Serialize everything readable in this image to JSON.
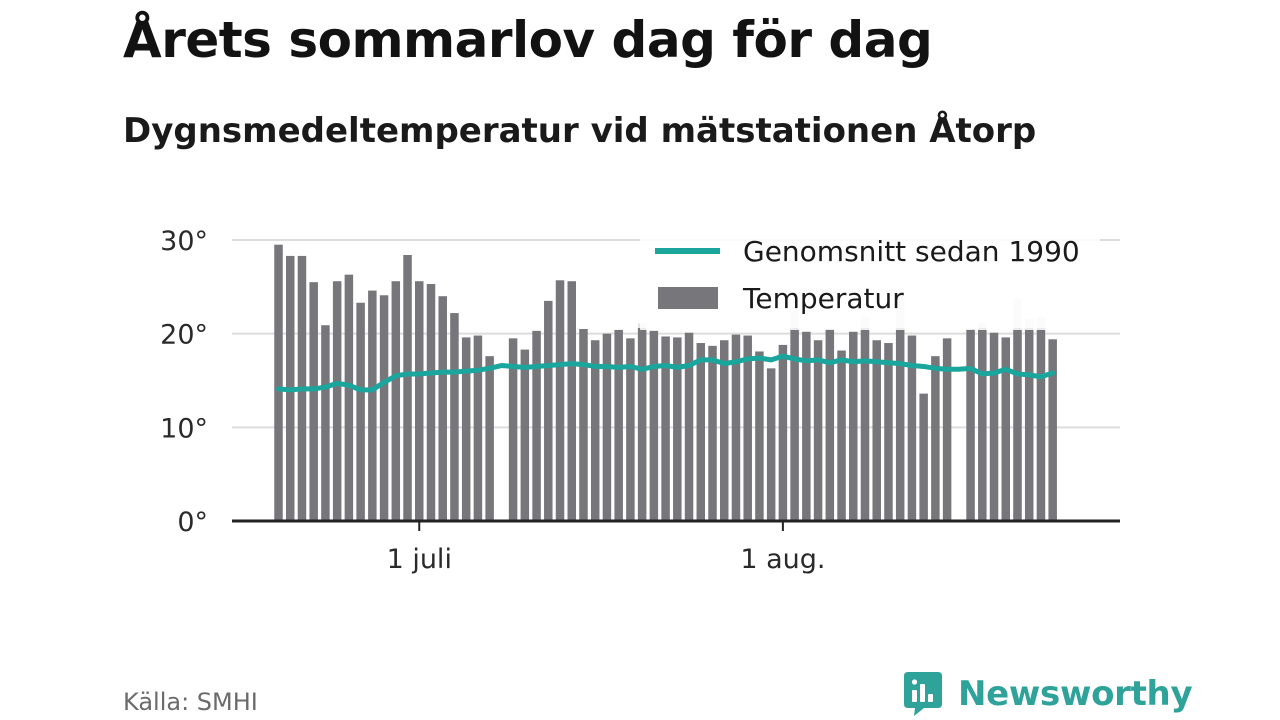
{
  "title": "Årets sommarlov dag för dag",
  "subtitle": "Dygnsmedeltemperatur vid mätstationen Åtorp",
  "source": "Källa: SMHI",
  "brand": {
    "name": "Newsworthy",
    "logo_icon": "bar-chart-speech-bubble-icon",
    "color": "#2fa39a"
  },
  "colors": {
    "bar": "#77767b",
    "bar_ghost": "#e2e2e2",
    "average_line": "#1aa59d",
    "grid": "#dddddd",
    "axis": "#222222"
  },
  "chart_data": {
    "type": "bar",
    "x_unit": "date",
    "x_start": "2020-06-19",
    "x_end": "2020-08-23",
    "x_ticks": [
      {
        "date": "2020-07-01",
        "label": "1 juli"
      },
      {
        "date": "2020-08-01",
        "label": "1 aug."
      }
    ],
    "y_ticks": [
      {
        "value": 0,
        "label": "0°"
      },
      {
        "value": 10,
        "label": "10°"
      },
      {
        "value": 20,
        "label": "20°"
      },
      {
        "value": 30,
        "label": "30°"
      }
    ],
    "ylim": [
      0,
      30
    ],
    "grid": true,
    "legend": {
      "placement": "top-right",
      "entries": [
        {
          "label": "Genomsnitt sedan 1990",
          "kind": "line"
        },
        {
          "label": "Temperatur",
          "kind": "bar"
        }
      ]
    },
    "series": [
      {
        "name": "Temperatur",
        "kind": "bar",
        "values": [
          29.5,
          28.3,
          28.3,
          25.5,
          20.9,
          25.6,
          26.3,
          23.3,
          24.6,
          24.1,
          25.6,
          28.4,
          25.6,
          25.3,
          24.0,
          22.2,
          19.6,
          19.8,
          17.6,
          null,
          19.5,
          18.3,
          20.3,
          23.5,
          25.7,
          25.6,
          20.5,
          19.3,
          20.0,
          20.4,
          19.5,
          20.6,
          20.3,
          19.7,
          19.6,
          20.1,
          19.0,
          18.7,
          19.3,
          19.9,
          19.8,
          18.1,
          16.3,
          18.8,
          20.6,
          20.2,
          19.3,
          20.5,
          18.2,
          20.2,
          20.6,
          19.3,
          19.0,
          20.6,
          19.8,
          13.6,
          17.6,
          19.5,
          null,
          20.5,
          20.6,
          20.1,
          19.6,
          20.6,
          20.6,
          20.6,
          19.4
        ],
        "ghost_values": [
          null,
          null,
          null,
          null,
          null,
          null,
          null,
          null,
          null,
          null,
          null,
          null,
          null,
          null,
          null,
          null,
          null,
          null,
          null,
          null,
          null,
          null,
          null,
          null,
          null,
          null,
          null,
          null,
          null,
          null,
          null,
          21.1,
          null,
          null,
          null,
          null,
          null,
          null,
          null,
          null,
          null,
          null,
          null,
          null,
          22.6,
          null,
          null,
          null,
          null,
          null,
          21.8,
          null,
          null,
          24.0,
          null,
          null,
          null,
          null,
          null,
          null,
          21.1,
          null,
          null,
          23.7,
          21.6,
          21.8,
          null
        ]
      },
      {
        "name": "Genomsnitt sedan 1990",
        "kind": "line",
        "values": [
          14.1,
          14.0,
          14.1,
          14.1,
          14.3,
          14.7,
          14.5,
          14.0,
          14.0,
          14.8,
          15.5,
          15.7,
          15.7,
          15.8,
          15.9,
          15.9,
          16.0,
          16.1,
          16.3,
          16.6,
          16.5,
          16.4,
          16.5,
          16.6,
          16.7,
          16.8,
          16.7,
          16.5,
          16.5,
          16.4,
          16.5,
          16.2,
          16.5,
          16.6,
          16.4,
          16.6,
          17.2,
          17.2,
          16.8,
          17.0,
          17.3,
          17.4,
          17.2,
          17.6,
          17.3,
          17.1,
          17.2,
          16.9,
          17.2,
          17.0,
          17.1,
          17.0,
          16.9,
          16.8,
          16.6,
          16.5,
          16.3,
          16.2,
          16.2,
          16.3,
          15.7,
          15.8,
          16.2,
          15.7,
          15.6,
          15.4,
          15.8
        ]
      }
    ]
  }
}
